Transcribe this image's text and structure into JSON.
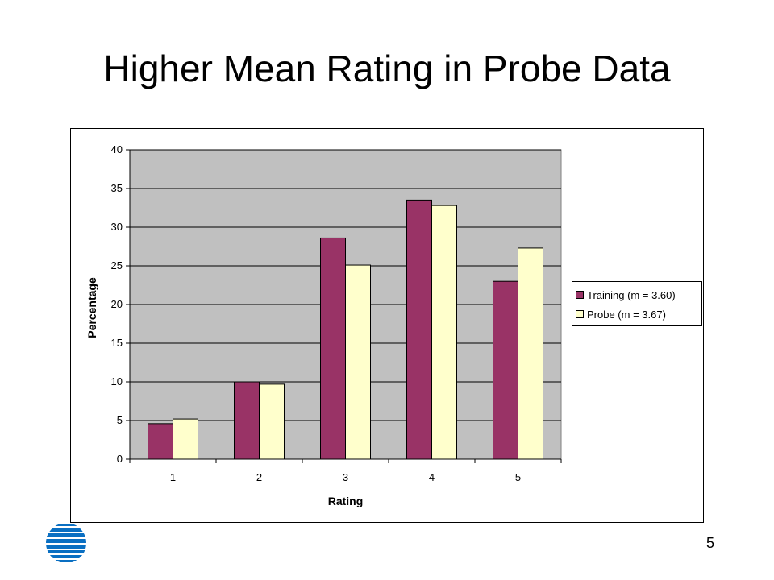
{
  "slide": {
    "title": "Higher Mean Rating in Probe Data",
    "page_number": "5",
    "logo_icon": "att-globe-icon"
  },
  "colors": {
    "plot_background": "#C0C0C0",
    "training": "#993366",
    "probe": "#FFFFCC",
    "logo_blue": "#0A6FC2"
  },
  "chart_data": {
    "type": "bar",
    "title": "",
    "xlabel": "Rating",
    "ylabel": "Percentage",
    "categories": [
      "1",
      "2",
      "3",
      "4",
      "5"
    ],
    "ylim": [
      0,
      40
    ],
    "yticks": [
      "0",
      "5",
      "10",
      "15",
      "20",
      "25",
      "30",
      "35",
      "40"
    ],
    "grid": true,
    "legend_position": "right",
    "series": [
      {
        "name": "Training (m = 3.60)",
        "color": "#993366",
        "values": [
          4.6,
          10.0,
          28.6,
          33.5,
          23.0
        ]
      },
      {
        "name": "Probe (m = 3.67)",
        "color": "#FFFFCC",
        "values": [
          5.2,
          9.7,
          25.1,
          32.8,
          27.3
        ]
      }
    ]
  }
}
